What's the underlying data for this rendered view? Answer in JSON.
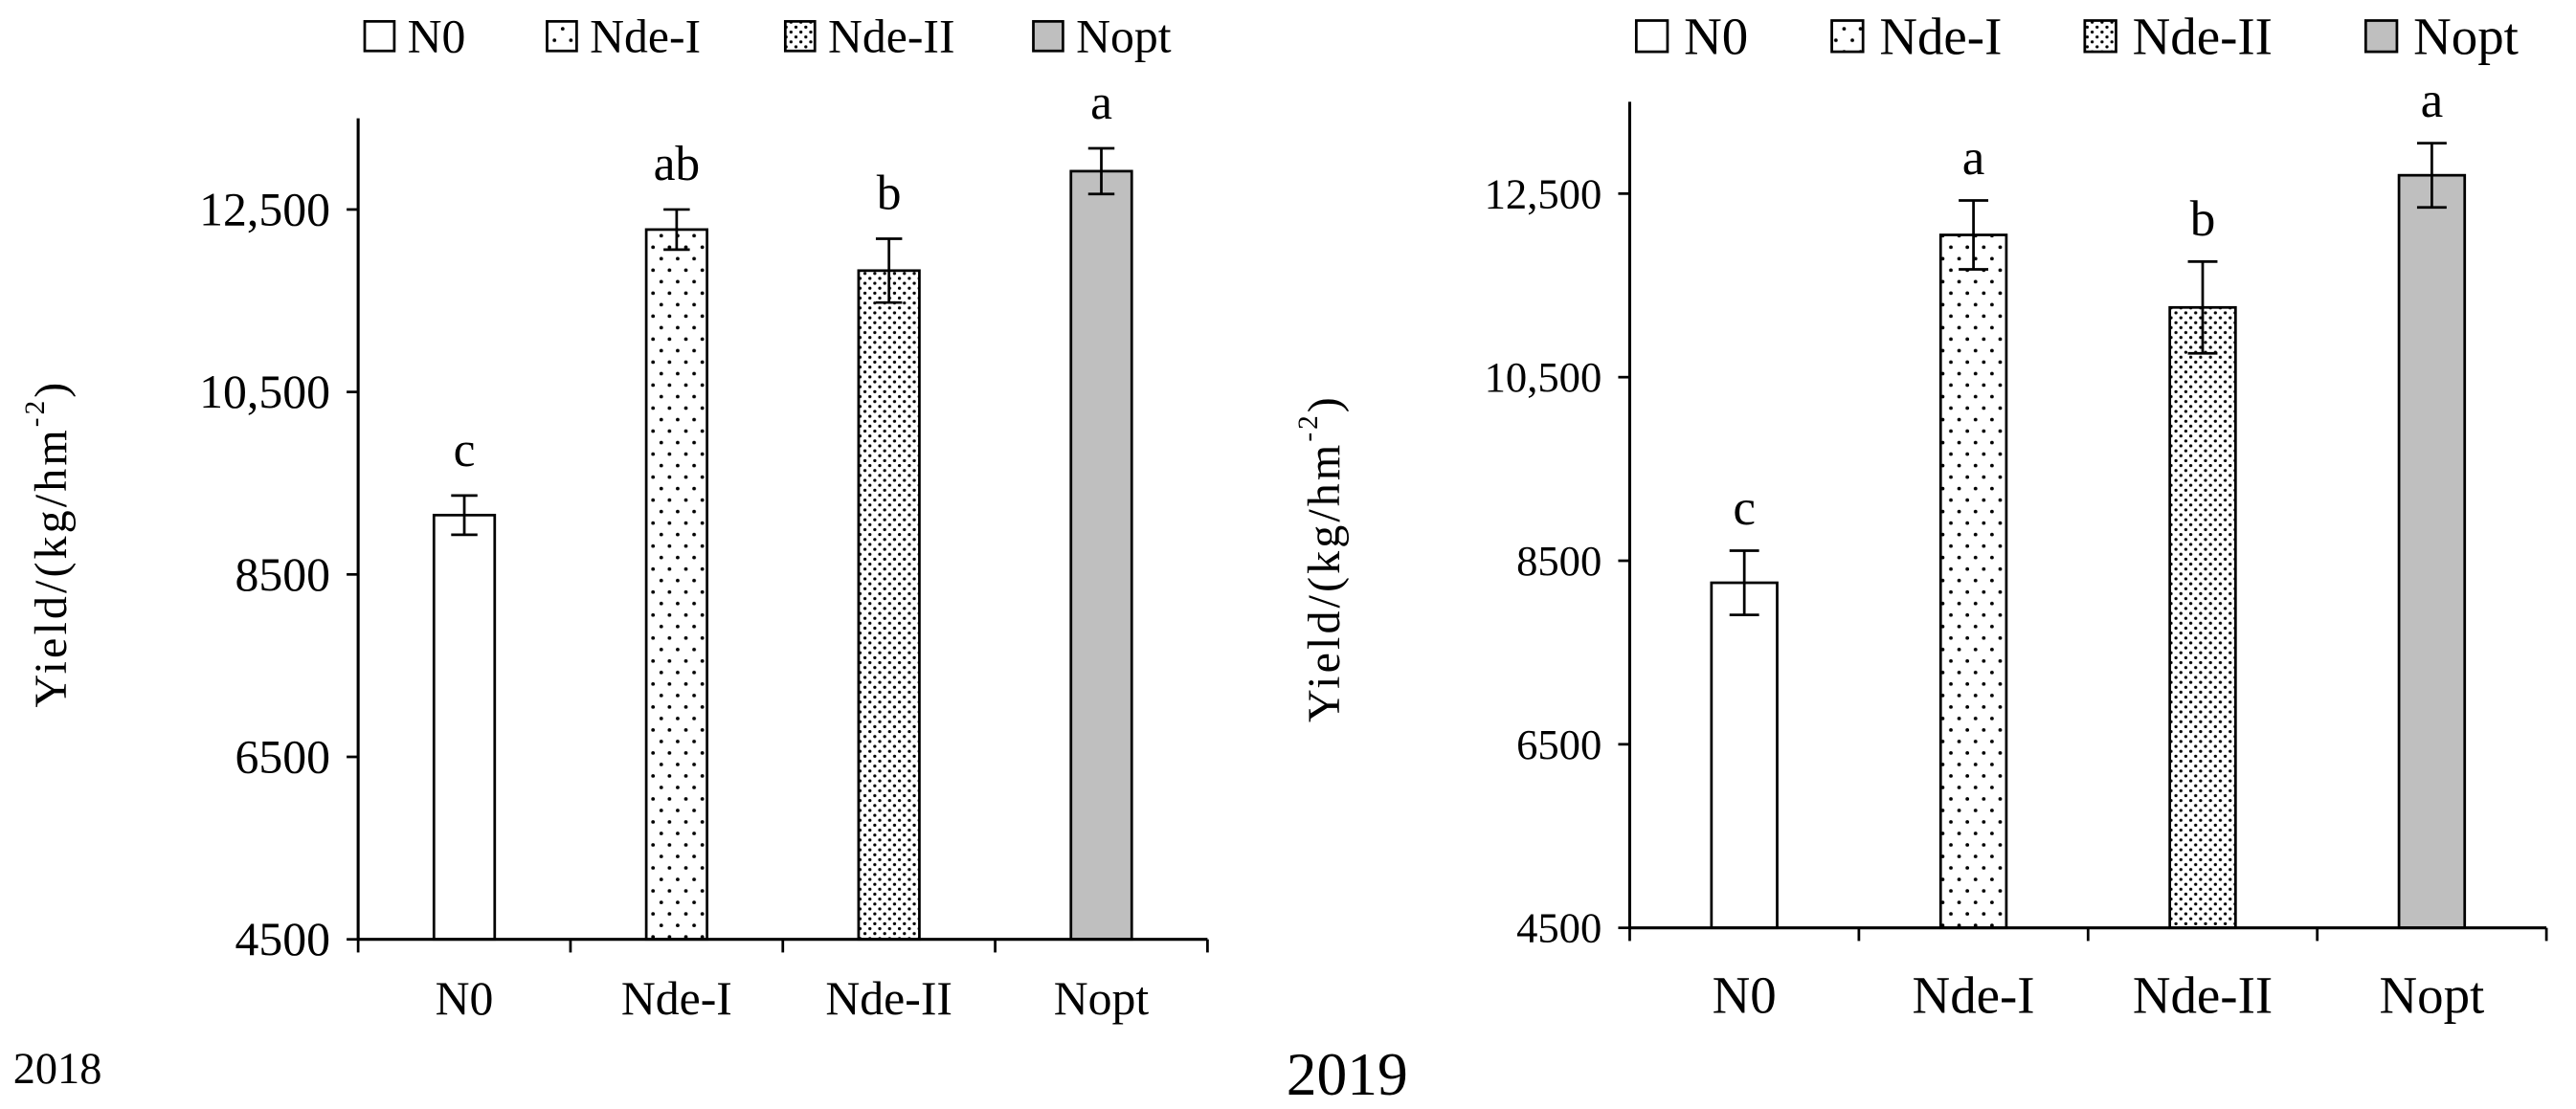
{
  "chart_data": [
    {
      "type": "bar",
      "title": "2018",
      "legend": [
        "N0",
        "Nde-I",
        "Nde-II",
        "Nopt"
      ],
      "legend_position": "top",
      "categories": [
        "N0",
        "Nde-I",
        "Nde-II",
        "Nopt"
      ],
      "values": [
        9150,
        12280,
        11830,
        12920
      ],
      "errors": [
        215,
        220,
        350,
        250
      ],
      "significance": [
        "c",
        "ab",
        "b",
        "a"
      ],
      "xlabel": "",
      "ylabel": {
        "text": "Yield/(kg/hm",
        "superscript": "-2",
        "suffix": ")"
      },
      "ylim": [
        4500,
        13500
      ],
      "yticks": [
        4500,
        6500,
        8500,
        10500,
        12500
      ],
      "ytick_labels": [
        "4500",
        "6500",
        "8500",
        "10,500",
        "12,500"
      ],
      "grid": false
    },
    {
      "type": "bar",
      "title": "2019",
      "legend": [
        "N0",
        "Nde-I",
        "Nde-II",
        "Nopt"
      ],
      "legend_position": "top",
      "categories": [
        "N0",
        "Nde-I",
        "Nde-II",
        "Nopt"
      ],
      "values": [
        8260,
        12050,
        11260,
        12700
      ],
      "errors": [
        350,
        375,
        500,
        350
      ],
      "significance": [
        "c",
        "a",
        "b",
        "a"
      ],
      "xlabel": "",
      "ylabel": {
        "text": "Yield/(kg/hm",
        "superscript": "-2",
        "suffix": ")"
      },
      "ylim": [
        4500,
        13500
      ],
      "yticks": [
        4500,
        6500,
        8500,
        10500,
        12500
      ],
      "ytick_labels": [
        "4500",
        "6500",
        "8500",
        "10,500",
        "12,500"
      ],
      "grid": false
    }
  ],
  "colors": {
    "background": "#ffffff",
    "line": "#000000",
    "bar_n0": "#ffffff",
    "bar_nopt": "#bfbfbf",
    "pattern_dots": "#000000"
  }
}
